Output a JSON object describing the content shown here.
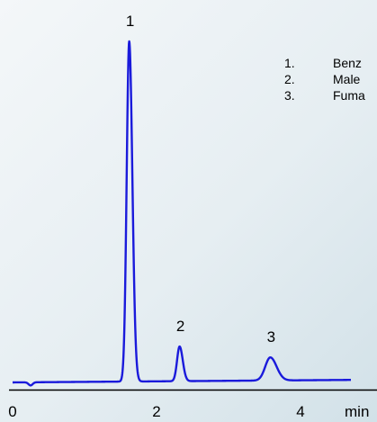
{
  "chart_data": {
    "type": "line",
    "title": "",
    "xlabel": "min",
    "ylabel": "",
    "x_ticks": [
      "0",
      "2",
      "4"
    ],
    "x_tick_values": [
      0,
      2,
      4
    ],
    "xlim": [
      0,
      5.04
    ],
    "ylim": [
      0,
      100
    ],
    "line_color": "#1a1adb",
    "peaks": [
      {
        "label": "1",
        "x": 1.62,
        "height": 100,
        "width": 0.035
      },
      {
        "label": "2",
        "x": 2.32,
        "height": 10.2,
        "width": 0.035
      },
      {
        "label": "3",
        "x": 3.58,
        "height": 6.8,
        "width": 0.07
      }
    ],
    "legend": [
      {
        "num": "1.",
        "text": "Benz"
      },
      {
        "num": "2.",
        "text": "Male"
      },
      {
        "num": "3.",
        "text": "Fuma"
      }
    ]
  }
}
